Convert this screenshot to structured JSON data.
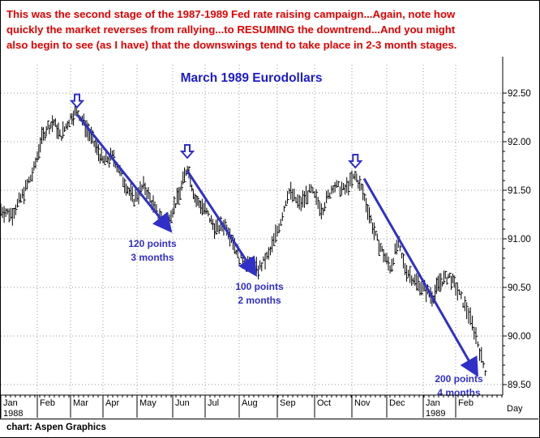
{
  "header": {
    "lines": [
      "This was the second stage of the 1987-1989 Fed rate raising campaign...Again, note how",
      "quickly the market reverses from rallying...to RESUMING the downtrend...And you might",
      "also begin to see (as I have) that the downswings tend to take place in 2-3 month stages."
    ]
  },
  "footer": {
    "credit": "chart: Aspen Graphics"
  },
  "chart_data": {
    "type": "bar",
    "title": "March 1989 Eurodollars",
    "x_axis": {
      "months": [
        "Jan",
        "Feb",
        "Mar",
        "Apr",
        "May",
        "Jun",
        "Jul",
        "Aug",
        "Sep",
        "Oct",
        "Nov",
        "Dec",
        "Jan",
        "Feb"
      ],
      "year_labels": [
        {
          "text": "1988",
          "month_index": 0
        },
        {
          "text": "1989",
          "month_index": 12
        }
      ],
      "unit_label": "Day"
    },
    "y_axis": {
      "ticks": [
        "92.50",
        "92.00",
        "91.50",
        "91.00",
        "90.50",
        "90.00",
        "89.50"
      ],
      "tick_values": [
        92.5,
        92.0,
        91.5,
        91.0,
        90.5,
        90.0,
        89.5
      ],
      "range": [
        89.37,
        92.75
      ]
    },
    "grid": true,
    "price_path_month_value": [
      [
        0.0,
        91.3
      ],
      [
        0.3,
        91.25
      ],
      [
        0.6,
        91.45
      ],
      [
        0.9,
        91.7
      ],
      [
        1.1,
        92.0
      ],
      [
        1.3,
        92.15
      ],
      [
        1.5,
        92.2
      ],
      [
        1.7,
        92.05
      ],
      [
        2.0,
        92.25
      ],
      [
        2.2,
        92.32
      ],
      [
        2.4,
        92.2
      ],
      [
        2.7,
        92.0
      ],
      [
        3.0,
        91.8
      ],
      [
        3.3,
        91.85
      ],
      [
        3.6,
        91.6
      ],
      [
        3.9,
        91.4
      ],
      [
        4.2,
        91.55
      ],
      [
        4.5,
        91.3
      ],
      [
        4.8,
        91.15
      ],
      [
        5.0,
        91.3
      ],
      [
        5.2,
        91.45
      ],
      [
        5.45,
        91.75
      ],
      [
        5.7,
        91.4
      ],
      [
        6.0,
        91.3
      ],
      [
        6.3,
        91.1
      ],
      [
        6.6,
        91.15
      ],
      [
        6.8,
        91.0
      ],
      [
        7.0,
        90.8
      ],
      [
        7.2,
        90.75
      ],
      [
        7.5,
        90.68
      ],
      [
        7.8,
        90.85
      ],
      [
        8.1,
        91.2
      ],
      [
        8.3,
        91.5
      ],
      [
        8.6,
        91.35
      ],
      [
        8.9,
        91.5
      ],
      [
        9.2,
        91.3
      ],
      [
        9.5,
        91.55
      ],
      [
        9.8,
        91.5
      ],
      [
        10.1,
        91.65
      ],
      [
        10.3,
        91.5
      ],
      [
        10.5,
        91.25
      ],
      [
        10.7,
        91.0
      ],
      [
        10.9,
        90.85
      ],
      [
        11.1,
        90.7
      ],
      [
        11.3,
        90.95
      ],
      [
        11.5,
        90.7
      ],
      [
        11.8,
        90.55
      ],
      [
        12.0,
        90.5
      ],
      [
        12.3,
        90.4
      ],
      [
        12.5,
        90.55
      ],
      [
        12.8,
        90.62
      ],
      [
        13.0,
        90.5
      ],
      [
        13.3,
        90.25
      ],
      [
        13.5,
        90.0
      ],
      [
        13.65,
        89.75
      ],
      [
        13.75,
        89.62
      ]
    ],
    "annotations": {
      "arrows": [
        {
          "from": [
            2.2,
            92.28
          ],
          "to": [
            4.9,
            91.1
          ]
        },
        {
          "from": [
            5.45,
            91.7
          ],
          "to": [
            7.4,
            90.65
          ]
        },
        {
          "from": [
            10.35,
            91.62
          ],
          "to": [
            13.5,
            89.62
          ]
        }
      ],
      "markers_month_value": [
        [
          2.2,
          92.42
        ],
        [
          5.45,
          91.9
        ],
        [
          10.1,
          91.8
        ]
      ],
      "labels": [
        {
          "line1": "120 points",
          "line2": "3 months"
        },
        {
          "line1": "100 points",
          "line2": "2 months"
        },
        {
          "line1": "200 points",
          "line2": "4 months"
        }
      ]
    }
  },
  "colors": {
    "header_text": "#e00000",
    "title_text": "#1c1ccc",
    "annotation": "#3030c8",
    "bars": "#000000",
    "grid": "#9a9a9a"
  }
}
